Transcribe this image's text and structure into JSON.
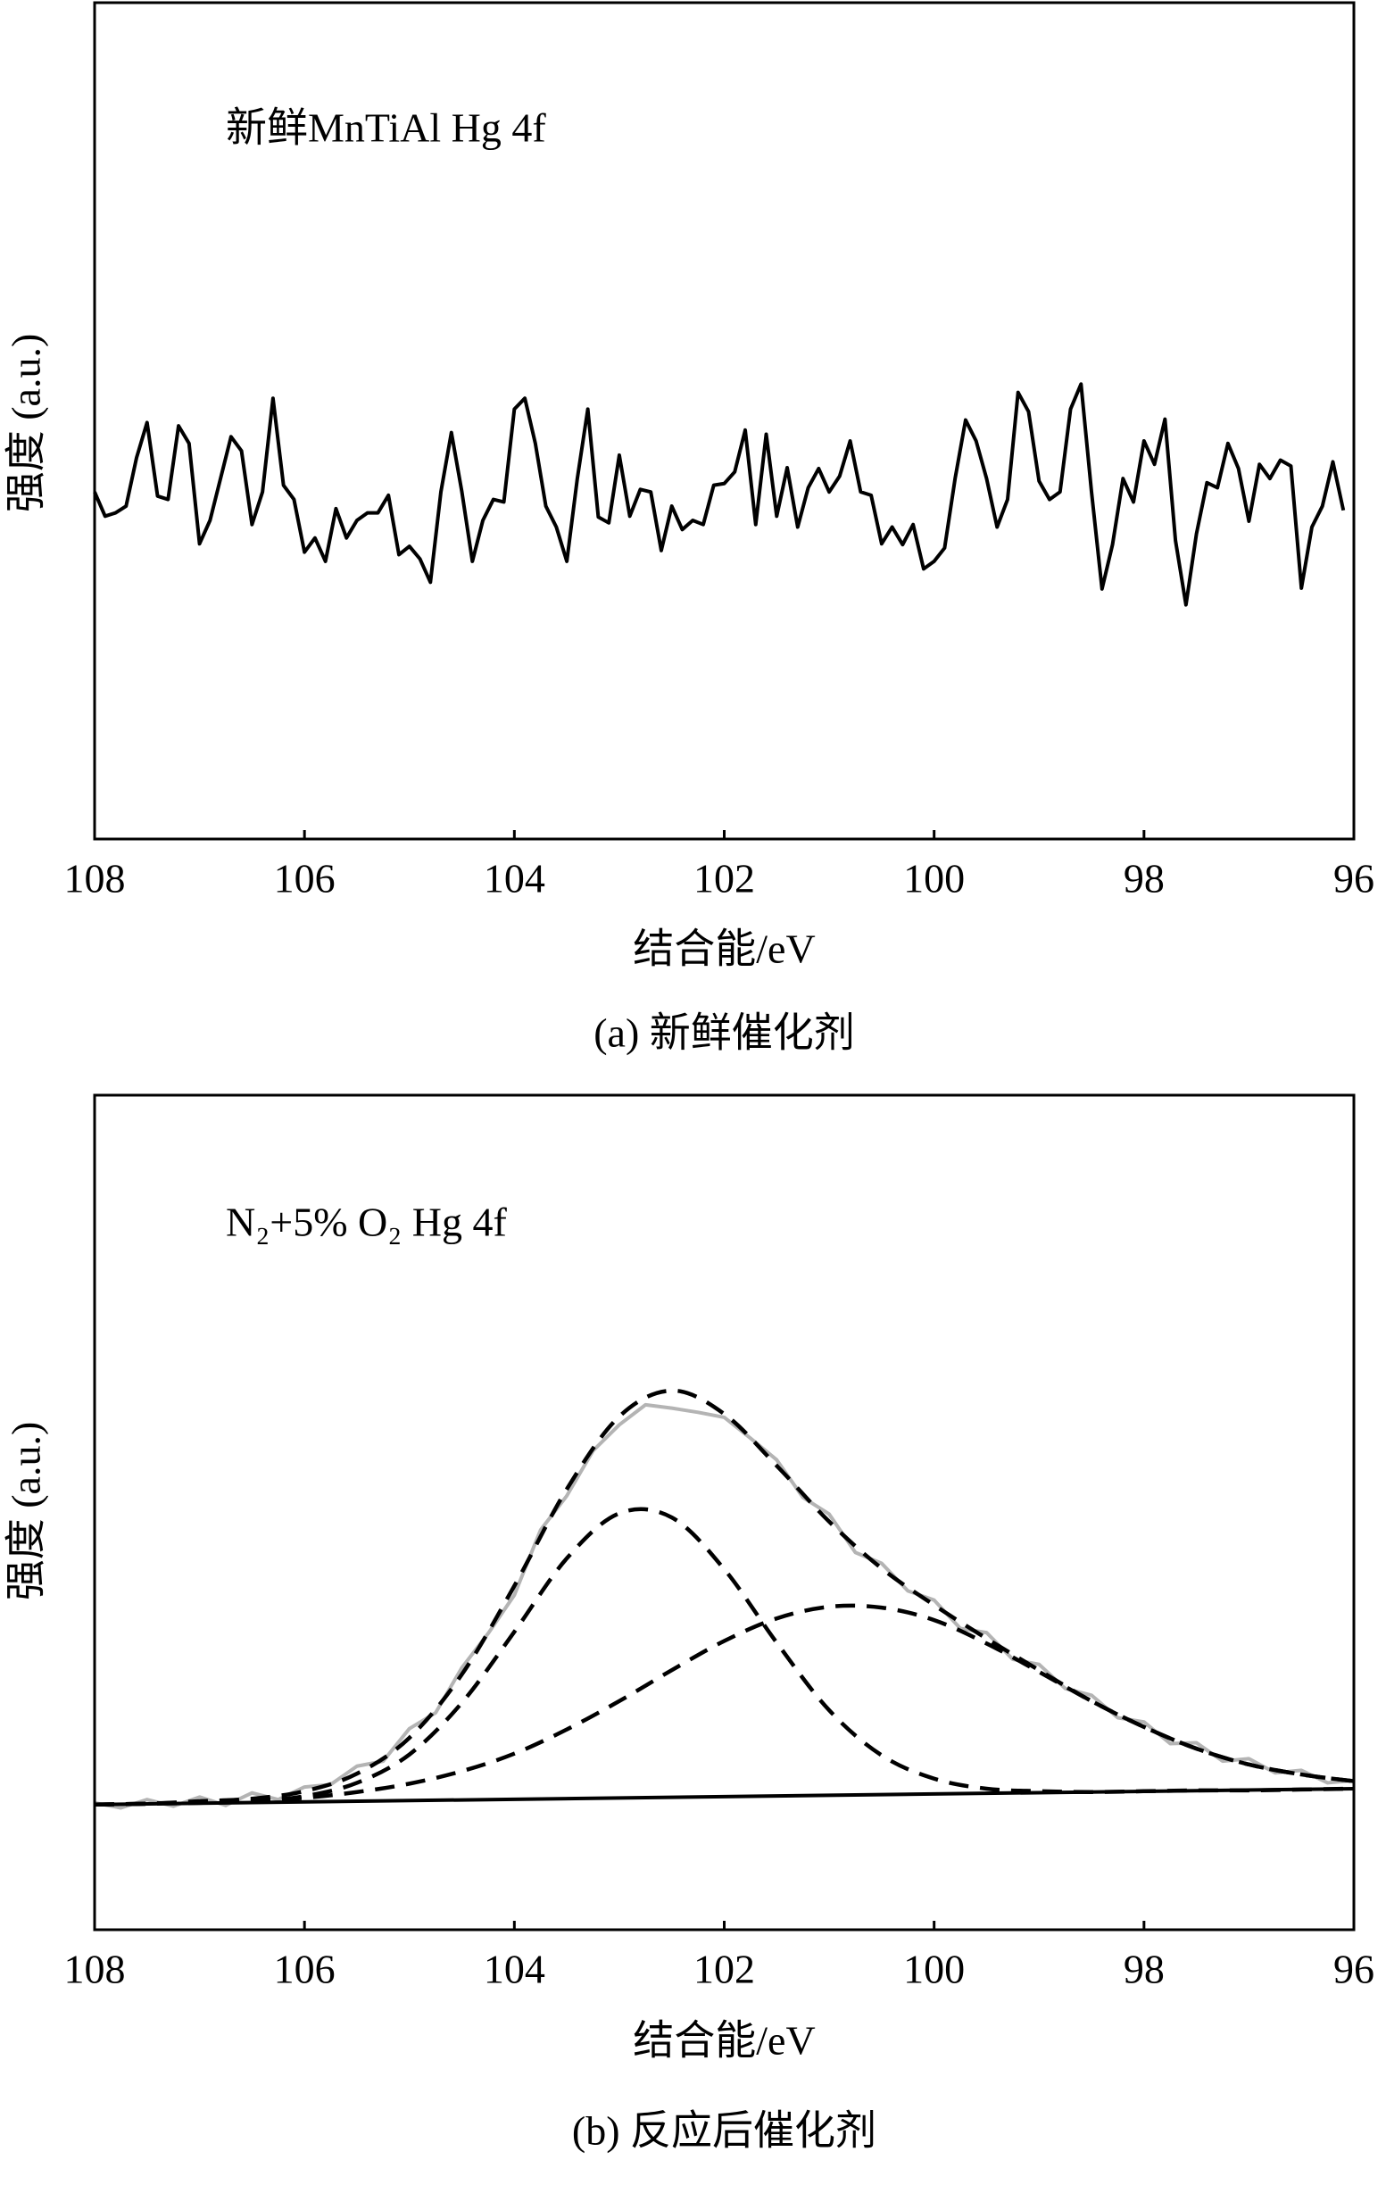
{
  "chart_data": [
    {
      "type": "line",
      "annotation": "新鲜MnTiAl  Hg 4f",
      "xlabel": "结合能/eV",
      "ylabel": "强度 (a.u.)",
      "caption": "(a) 新鲜催化剂",
      "xlim": [
        108,
        96
      ],
      "xticks": [
        108,
        106,
        104,
        102,
        100,
        98,
        96
      ],
      "ylim": [
        0,
        100
      ],
      "series": [
        {
          "color": "#000000",
          "dash": false,
          "smooth": false,
          "x": [
            108,
            107.9,
            107.8,
            107.7,
            107.6,
            107.5,
            107.4,
            107.3,
            107.2,
            107.1,
            107,
            106.9,
            106.8,
            106.7,
            106.6,
            106.5,
            106.4,
            106.3,
            106.2,
            106.1,
            106,
            105.9,
            105.8,
            105.7,
            105.6,
            105.5,
            105.4,
            105.3,
            105.2,
            105.1,
            105,
            104.9,
            104.8,
            104.7,
            104.6,
            104.5,
            104.4,
            104.3,
            104.2,
            104.1,
            104,
            103.9,
            103.8,
            103.7,
            103.6,
            103.5,
            103.4,
            103.3,
            103.2,
            103.1,
            103,
            102.9,
            102.8,
            102.7,
            102.6,
            102.5,
            102.4,
            102.3,
            102.2,
            102.1,
            102,
            101.9,
            101.8,
            101.7,
            101.6,
            101.5,
            101.4,
            101.3,
            101.2,
            101.1,
            101,
            100.9,
            100.8,
            100.7,
            100.6,
            100.5,
            100.4,
            100.3,
            100.2,
            100.1,
            100,
            99.9,
            99.8,
            99.7,
            99.6,
            99.5,
            99.4,
            99.3,
            99.2,
            99.1,
            99,
            98.9,
            98.8,
            98.7,
            98.6,
            98.5,
            98.4,
            98.3,
            98.2,
            98.1,
            98,
            97.9,
            97.8,
            97.7,
            97.6,
            97.5,
            97.4,
            97.3,
            97.2,
            97.1,
            97,
            96.9,
            96.8,
            96.7,
            96.6,
            96.5,
            96.4,
            96.3,
            96.2,
            96.1
          ],
          "values": [
            41.5,
            38.6,
            39.0,
            39.8,
            45.6,
            49.8,
            41.0,
            40.6,
            49.4,
            47.3,
            35.3,
            38.1,
            43.1,
            48.1,
            46.4,
            37.6,
            41.5,
            52.7,
            42.3,
            40.6,
            34.3,
            36.0,
            33.2,
            39.5,
            36.0,
            38.1,
            39.0,
            39.0,
            41.1,
            34.0,
            35.0,
            33.5,
            30.7,
            41.5,
            48.6,
            41.5,
            33.2,
            38.1,
            40.6,
            40.3,
            51.4,
            52.7,
            47.3,
            39.8,
            37.3,
            33.2,
            43.1,
            51.4,
            38.5,
            37.8,
            45.9,
            38.6,
            41.8,
            41.5,
            34.5,
            39.8,
            37.0,
            38.1,
            37.6,
            42.3,
            42.5,
            43.9,
            48.9,
            37.6,
            48.4,
            38.6,
            44.4,
            37.3,
            42.0,
            44.3,
            41.5,
            43.4,
            47.6,
            41.5,
            41.1,
            35.3,
            37.3,
            35.2,
            37.6,
            32.3,
            33.2,
            34.8,
            43.1,
            50.1,
            47.6,
            43.1,
            37.3,
            40.6,
            53.4,
            51.1,
            42.8,
            40.6,
            41.5,
            51.4,
            54.4,
            41.5,
            29.9,
            35.2,
            43.1,
            40.3,
            47.6,
            44.8,
            50.2,
            35.7,
            28.0,
            36.5,
            42.6,
            42.0,
            47.3,
            44.3,
            38.0,
            44.8,
            43.1,
            45.3,
            44.6,
            30.0,
            37.3,
            39.8,
            45.1,
            39.3
          ]
        }
      ]
    },
    {
      "type": "line",
      "annotation": "N₂+5% O₂ Hg 4f",
      "xlabel": "结合能/eV",
      "ylabel": "强度 (a.u.)",
      "caption": "(b) 反应后催化剂",
      "xlim": [
        108,
        96
      ],
      "xticks": [
        108,
        106,
        104,
        102,
        100,
        98,
        96
      ],
      "ylim": [
        0,
        100
      ],
      "series": [
        {
          "color": "#b4b4b4",
          "dash": false,
          "smooth": false,
          "x": [
            108,
            107.75,
            107.5,
            107.25,
            107,
            106.75,
            106.5,
            106.25,
            106,
            105.75,
            105.5,
            105.25,
            105,
            104.75,
            104.5,
            104.25,
            104,
            103.75,
            103.5,
            103.25,
            103,
            102.75,
            102.5,
            102.25,
            102,
            101.75,
            101.5,
            101.25,
            101,
            100.75,
            100.5,
            100.25,
            100,
            99.75,
            99.5,
            99.25,
            99,
            98.75,
            98.5,
            98.25,
            98,
            97.75,
            97.5,
            97.25,
            97,
            96.75,
            96.5,
            96.25,
            96
          ],
          "values": [
            15.2,
            14.6,
            15.6,
            14.8,
            15.9,
            14.9,
            16.4,
            15.6,
            17.1,
            17.4,
            19.6,
            20.2,
            24.1,
            26.0,
            31.4,
            35.5,
            40.1,
            47.9,
            52.0,
            57.4,
            60.5,
            62.9,
            62.5,
            62.0,
            61.4,
            58.9,
            56.3,
            51.8,
            49.8,
            45.2,
            43.9,
            40.6,
            39.5,
            36.1,
            35.6,
            32.4,
            31.8,
            28.9,
            28.1,
            25.4,
            24.9,
            22.3,
            22.4,
            20.2,
            20.5,
            18.8,
            19.1,
            17.6,
            17.9
          ]
        },
        {
          "color": "#000000",
          "dash": true,
          "smooth": true,
          "x": [
            108,
            107.5,
            107,
            106.5,
            106,
            105.5,
            105,
            104.5,
            104,
            103.5,
            103,
            102.5,
            102,
            101.5,
            101,
            100.5,
            100,
            99.5,
            99,
            98.5,
            98,
            97.5,
            97,
            96.5,
            96
          ],
          "values": [
            15.0,
            15.1,
            15.2,
            15.4,
            16.0,
            17.6,
            21.0,
            27.2,
            35.7,
            44.5,
            49.9,
            49.4,
            43.2,
            34.4,
            26.3,
            20.9,
            18.1,
            16.9,
            16.6,
            16.5,
            16.6,
            16.7,
            16.7,
            16.8,
            16.9
          ]
        },
        {
          "color": "#000000",
          "dash": true,
          "smooth": true,
          "x": [
            108,
            107.5,
            107,
            106.5,
            106,
            105.5,
            105,
            104.5,
            104,
            103.5,
            103,
            102.5,
            102,
            101.5,
            101,
            100.5,
            100,
            99.5,
            99,
            98.5,
            98,
            97.5,
            97,
            96.5,
            96
          ],
          "values": [
            15.0,
            15.1,
            15.3,
            15.5,
            15.8,
            16.5,
            17.5,
            19.0,
            21.1,
            24.0,
            27.4,
            31.1,
            34.6,
            37.3,
            38.7,
            38.6,
            37.1,
            34.3,
            30.9,
            27.4,
            24.3,
            21.7,
            19.8,
            18.6,
            17.8
          ]
        },
        {
          "color": "#000000",
          "dash": true,
          "smooth": true,
          "x": [
            108,
            107.5,
            107,
            106.5,
            106,
            105.5,
            105,
            104.5,
            104,
            103.5,
            103,
            102.5,
            102,
            101.5,
            101,
            100.5,
            100,
            99.5,
            99,
            98.5,
            98,
            97.5,
            97,
            96.5,
            96
          ],
          "values": [
            15.0,
            15.1,
            15.4,
            15.7,
            16.6,
            18.7,
            23.0,
            30.6,
            41.2,
            52.8,
            61.5,
            64.6,
            61.8,
            55.6,
            48.9,
            43.3,
            38.9,
            34.9,
            31.1,
            27.4,
            24.3,
            21.7,
            19.8,
            18.6,
            17.8
          ]
        },
        {
          "color": "#000000",
          "dash": false,
          "smooth": false,
          "x": [
            108,
            96
          ],
          "values": [
            15.0,
            16.9
          ]
        }
      ]
    }
  ]
}
